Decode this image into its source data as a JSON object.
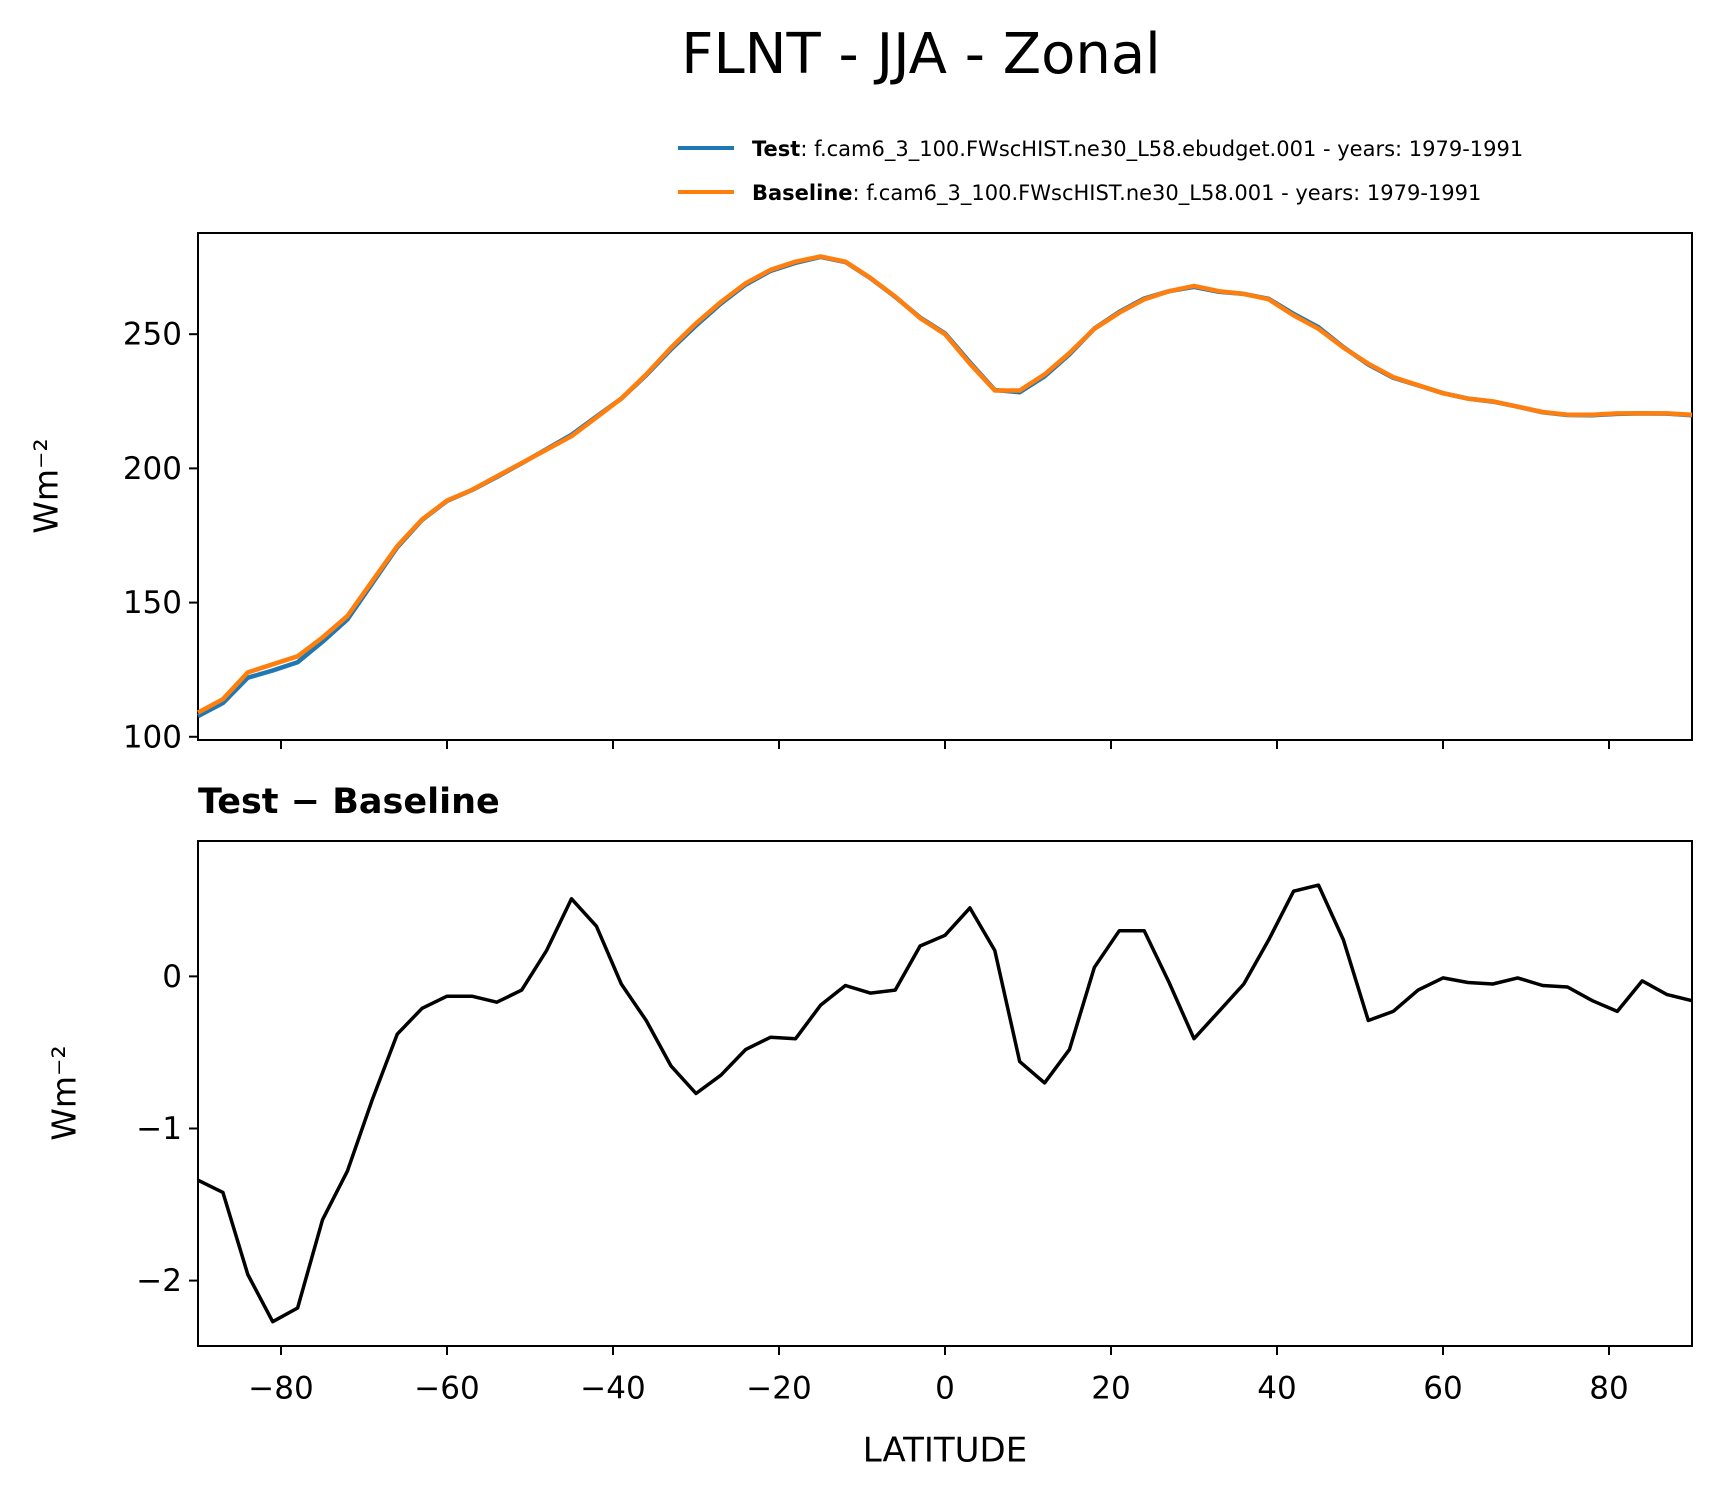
{
  "chart_data": [
    {
      "type": "line",
      "title": "FLNT - JJA - Zonal",
      "ylabel": "Wm⁻²",
      "x": [
        -90,
        -87,
        -84,
        -81,
        -78,
        -75,
        -72,
        -69,
        -66,
        -63,
        -60,
        -57,
        -54,
        -51,
        -48,
        -45,
        -42,
        -39,
        -36,
        -33,
        -30,
        -27,
        -24,
        -21,
        -18,
        -15,
        -12,
        -9,
        -6,
        -3,
        0,
        3,
        6,
        9,
        12,
        15,
        18,
        21,
        24,
        27,
        30,
        33,
        36,
        39,
        42,
        45,
        48,
        51,
        54,
        57,
        60,
        63,
        66,
        69,
        72,
        75,
        78,
        81,
        84,
        87,
        90
      ],
      "series": [
        {
          "name": "Test",
          "label": ": f.cam6_3_100.FWscHIST.ne30_L58.ebudget.001 - years: 1979-1991",
          "color": "#1f77b4",
          "values": [
            107.7,
            112.6,
            122.0,
            124.7,
            127.8,
            135.4,
            143.7,
            157.2,
            170.6,
            180.8,
            187.9,
            191.9,
            196.8,
            201.9,
            207.2,
            212.5,
            219.3,
            226.0,
            234.7,
            244.4,
            253.2,
            261.4,
            268.5,
            273.6,
            276.6,
            278.8,
            276.9,
            270.9,
            263.9,
            256.2,
            250.3,
            239.5,
            229.2,
            228.4,
            234.3,
            242.5,
            252.1,
            258.3,
            263.3,
            266.0,
            267.6,
            265.8,
            265.0,
            263.2,
            257.6,
            252.6,
            245.2,
            238.7,
            233.8,
            230.9,
            228.0,
            226.0,
            224.9,
            223.0,
            220.9,
            219.9,
            219.8,
            220.3,
            220.5,
            220.4,
            219.8
          ]
        },
        {
          "name": "Baseline",
          "label": ": f.cam6_3_100.FWscHIST.ne30_L58.001 - years: 1979-1991",
          "color": "#ff7f0e",
          "values": [
            109,
            114,
            124,
            127,
            130,
            137,
            145,
            158,
            171,
            181,
            188,
            192,
            197,
            202,
            207,
            212,
            219,
            226,
            235,
            245,
            254,
            262,
            269,
            274,
            277,
            279,
            277,
            271,
            264,
            256,
            250,
            239,
            229,
            229,
            235,
            243,
            252,
            258,
            263,
            266,
            268,
            266,
            265,
            263,
            257,
            252,
            245,
            239,
            234,
            231,
            228,
            226,
            225,
            223,
            221,
            220,
            220,
            220.5,
            220.5,
            220.5,
            220
          ]
        }
      ],
      "xlim": [
        -90,
        90
      ],
      "ylim": [
        98.8,
        287.7
      ],
      "yticks": [
        100,
        150,
        200,
        250
      ]
    },
    {
      "type": "line",
      "title": "Test − Baseline",
      "ylabel": "Wm⁻²",
      "xlabel": "LATITUDE",
      "x": [
        -90,
        -87,
        -84,
        -81,
        -78,
        -75,
        -72,
        -69,
        -66,
        -63,
        -60,
        -57,
        -54,
        -51,
        -48,
        -45,
        -42,
        -39,
        -36,
        -33,
        -30,
        -27,
        -24,
        -21,
        -18,
        -15,
        -12,
        -9,
        -6,
        -3,
        0,
        3,
        6,
        9,
        12,
        15,
        18,
        21,
        24,
        27,
        30,
        33,
        36,
        39,
        42,
        45,
        48,
        51,
        54,
        57,
        60,
        63,
        66,
        69,
        72,
        75,
        78,
        81,
        84,
        87,
        90
      ],
      "color": "#000000",
      "values": [
        -1.34,
        -1.42,
        -1.96,
        -2.27,
        -2.18,
        -1.6,
        -1.28,
        -0.81,
        -0.38,
        -0.21,
        -0.13,
        -0.13,
        -0.17,
        -0.09,
        0.17,
        0.51,
        0.33,
        -0.05,
        -0.29,
        -0.59,
        -0.77,
        -0.65,
        -0.48,
        -0.4,
        -0.41,
        -0.19,
        -0.06,
        -0.11,
        -0.09,
        0.2,
        0.27,
        0.45,
        0.17,
        -0.56,
        -0.7,
        -0.48,
        0.06,
        0.3,
        0.3,
        -0.04,
        -0.41,
        -0.23,
        -0.05,
        0.24,
        0.56,
        0.6,
        0.24,
        -0.29,
        -0.23,
        -0.09,
        -0.01,
        -0.04,
        -0.05,
        -0.01,
        -0.06,
        -0.07,
        -0.16,
        -0.23,
        -0.03,
        -0.12,
        -0.16
      ],
      "xlim": [
        -90,
        90
      ],
      "ylim": [
        -2.43,
        0.89
      ],
      "xticks": [
        {
          "value": -80,
          "label": "−80"
        },
        {
          "value": -60,
          "label": "−60"
        },
        {
          "value": -40,
          "label": "−40"
        },
        {
          "value": -20,
          "label": "−20"
        },
        0,
        20,
        40,
        60,
        80
      ],
      "yticks": [
        {
          "value": -2,
          "label": "−2"
        },
        {
          "value": -1,
          "label": "−1"
        },
        0
      ]
    }
  ]
}
